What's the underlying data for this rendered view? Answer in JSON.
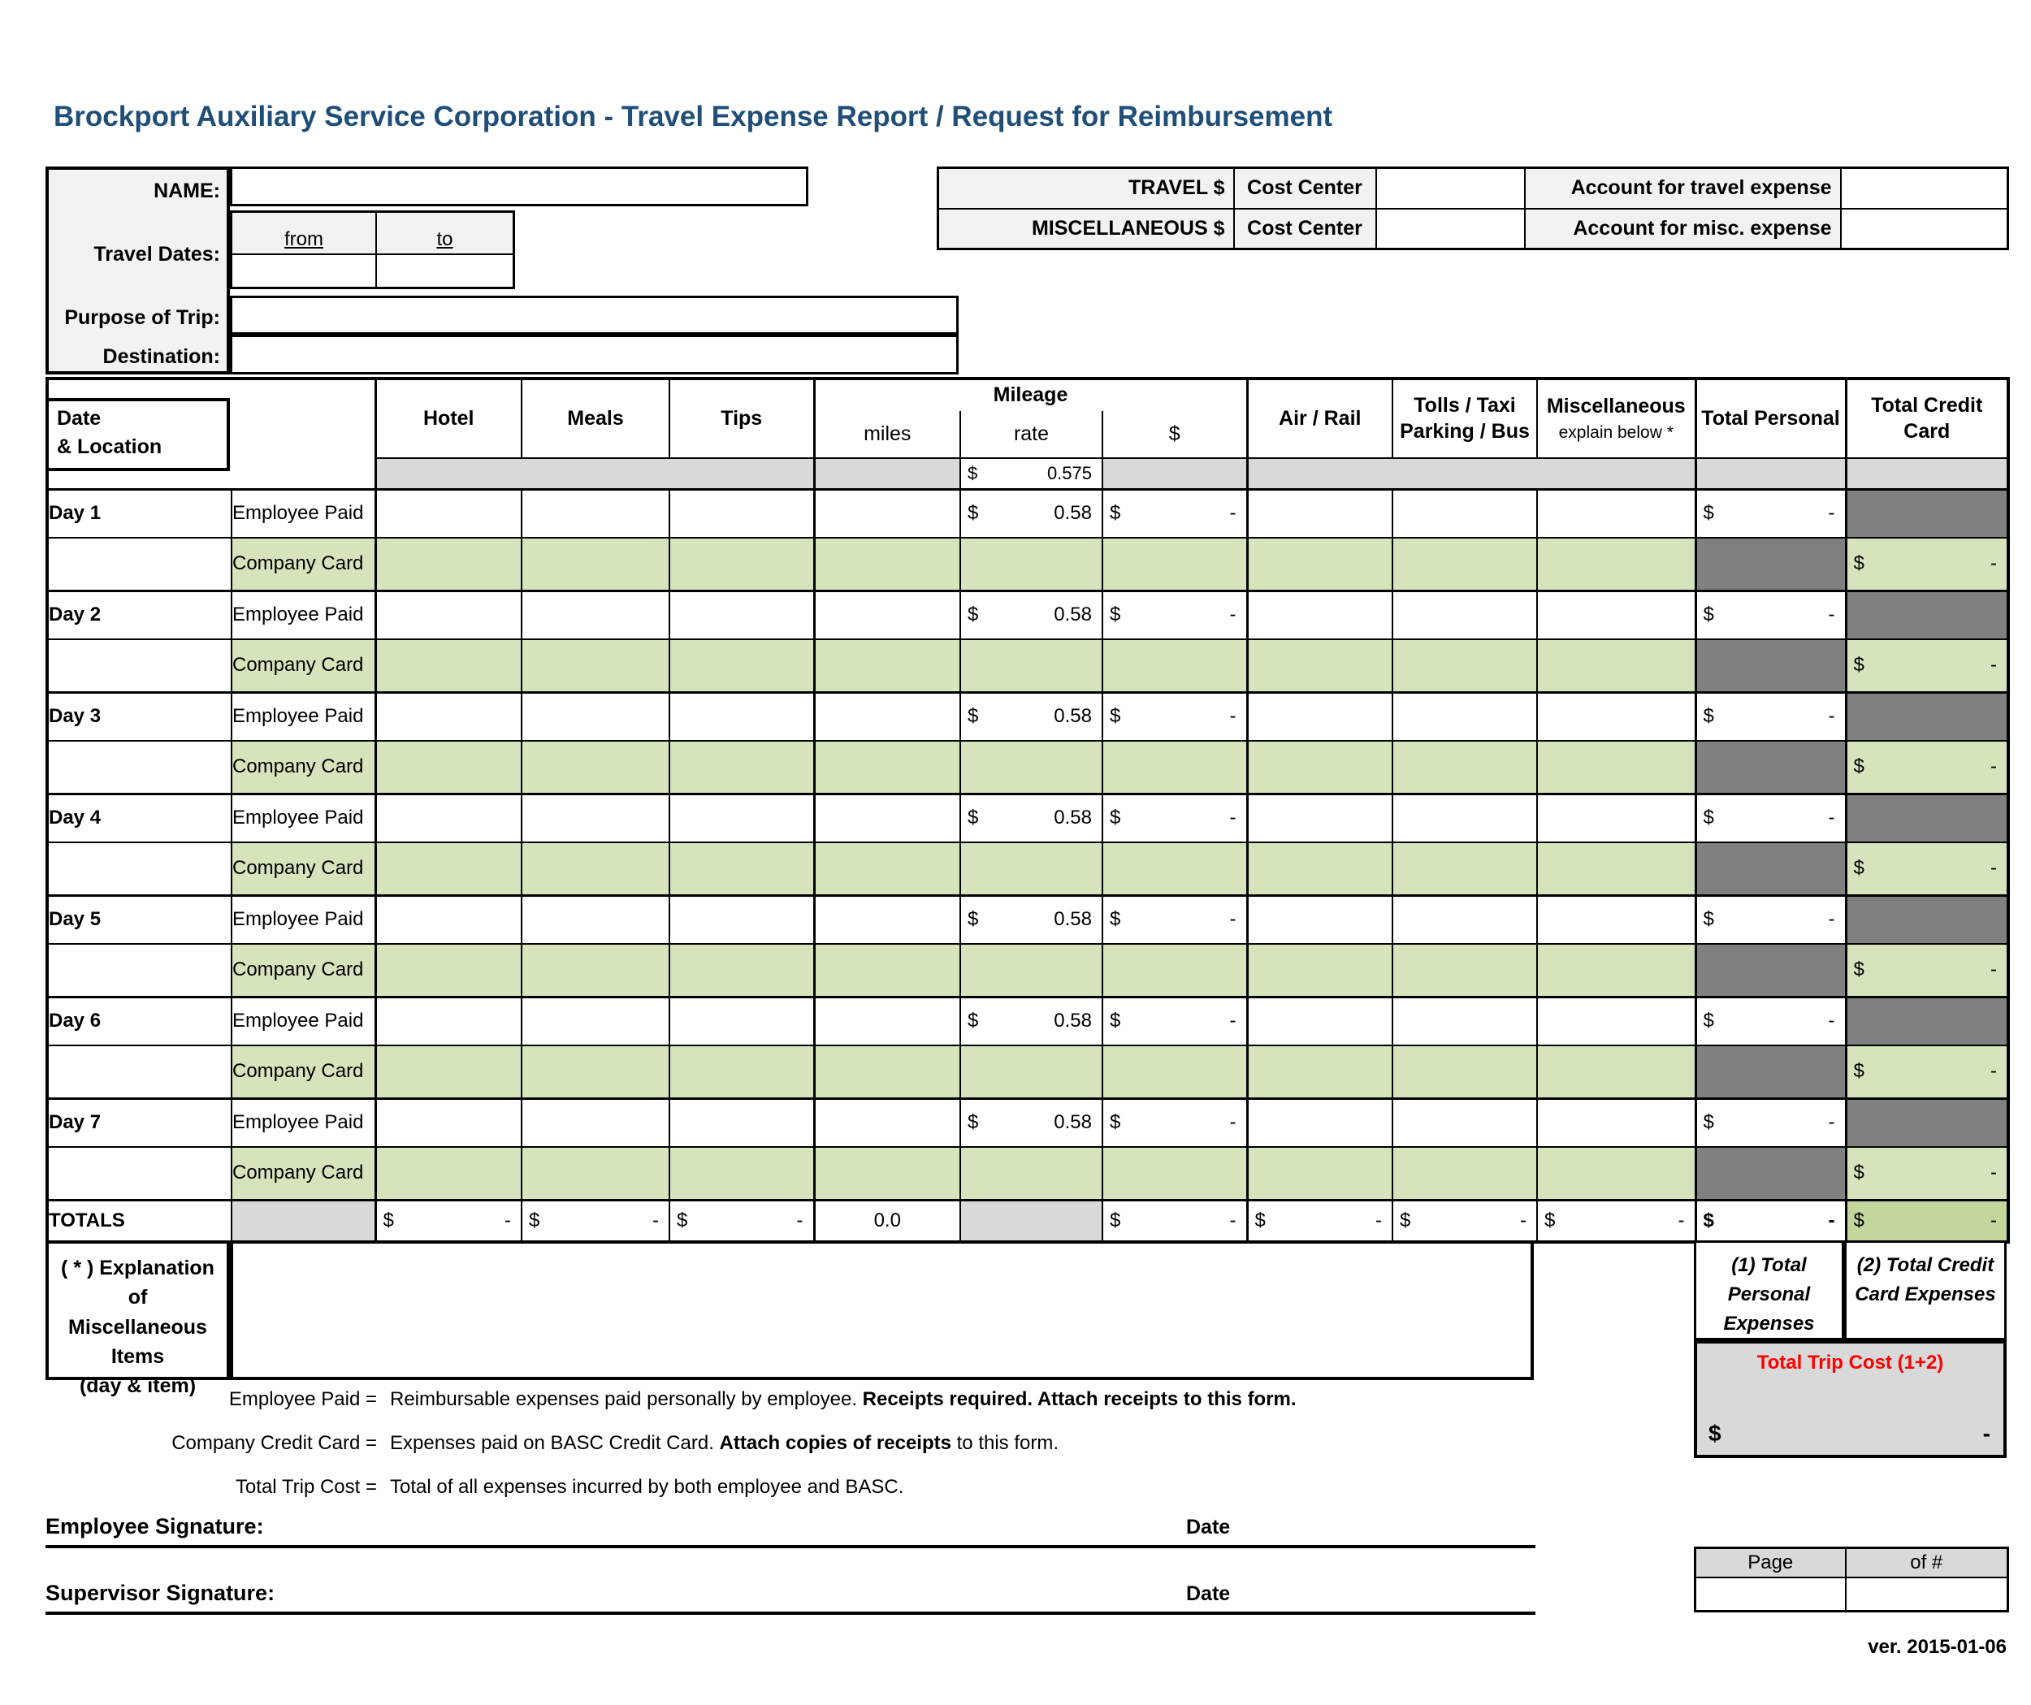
{
  "title": "Brockport Auxiliary Service Corporation  - Travel Expense Report / Request for Reimbursement",
  "header_left": {
    "name_label": "NAME:",
    "travel_dates_label": "Travel Dates:",
    "from_label": "from",
    "to_label": "to",
    "purpose_label": "Purpose of Trip:",
    "destination_label": "Destination:"
  },
  "header_right": {
    "rows": [
      {
        "label": "TRAVEL $",
        "cost_center": "Cost Center",
        "account": "Account for travel expense"
      },
      {
        "label": "MISCELLANEOUS $",
        "cost_center": "Cost Center",
        "account": "Account for misc. expense"
      }
    ]
  },
  "table": {
    "header": {
      "date_line1": "Date",
      "date_line2": "& Location",
      "hotel": "Hotel",
      "meals": "Meals",
      "tips": "Tips",
      "mileage": "Mileage",
      "miles": "miles",
      "rate": "rate",
      "dollar": "$",
      "air_rail": "Air / Rail",
      "tolls_line1": "Tolls / Taxi",
      "tolls_line2": "Parking / Bus",
      "misc_line1": "Miscellaneous",
      "misc_line2": "explain below *",
      "total_personal": "Total Personal",
      "total_credit_line1": "Total Credit",
      "total_credit_line2": "Card"
    },
    "dollar": "$",
    "dash": "-",
    "base_rate": "0.575",
    "day_rate": "0.58",
    "payer_employee": "Employee Paid",
    "payer_company": "Company Card",
    "days": [
      "Day 1",
      "Day 2",
      "Day 3",
      "Day 4",
      "Day 5",
      "Day 6",
      "Day 7"
    ],
    "totals": {
      "label": "TOTALS",
      "miles": "0.0"
    }
  },
  "explanation": {
    "line1": "( * ) Explanation of",
    "line2": "Miscellaneous",
    "line3": "Items",
    "line4": "(day & item)"
  },
  "summary": {
    "total_personal": "(1) Total Personal Expenses",
    "total_credit": "(2) Total Credit Card Expenses",
    "trip_cost_label": "Total Trip Cost (1+2)",
    "trip_dollar": "$",
    "trip_dash": "-"
  },
  "legend": {
    "items": [
      {
        "term": "Employee Paid =",
        "parts": [
          {
            "t": "Reimbursable expenses paid personally by employee. ",
            "b": false
          },
          {
            "t": "Receipts required. Attach receipts to this form.",
            "b": true
          }
        ]
      },
      {
        "term": "Company Credit Card =",
        "parts": [
          {
            "t": "Expenses paid on BASC Credit Card. ",
            "b": false
          },
          {
            "t": "Attach copies of receipts",
            "b": true
          },
          {
            "t": " to this form.",
            "b": false
          }
        ]
      },
      {
        "term": "Total Trip Cost =",
        "parts": [
          {
            "t": "Total of all expenses incurred by both employee and BASC.",
            "b": false
          }
        ]
      }
    ]
  },
  "signatures": {
    "employee": "Employee Signature:",
    "supervisor": "Supervisor Signature:",
    "date": "Date"
  },
  "page_box": {
    "page": "Page",
    "of": "of #"
  },
  "version": "ver. 2015-01-06",
  "colors": {
    "accent_blue": "#1F4E79",
    "green_light": "#D6E4BC",
    "green_total": "#C3D69B",
    "gray_band": "#D9D9D9",
    "gray_label": "#F2F2F2",
    "gray_blocked": "#808080",
    "red_trip_cost": "#FF0000"
  }
}
